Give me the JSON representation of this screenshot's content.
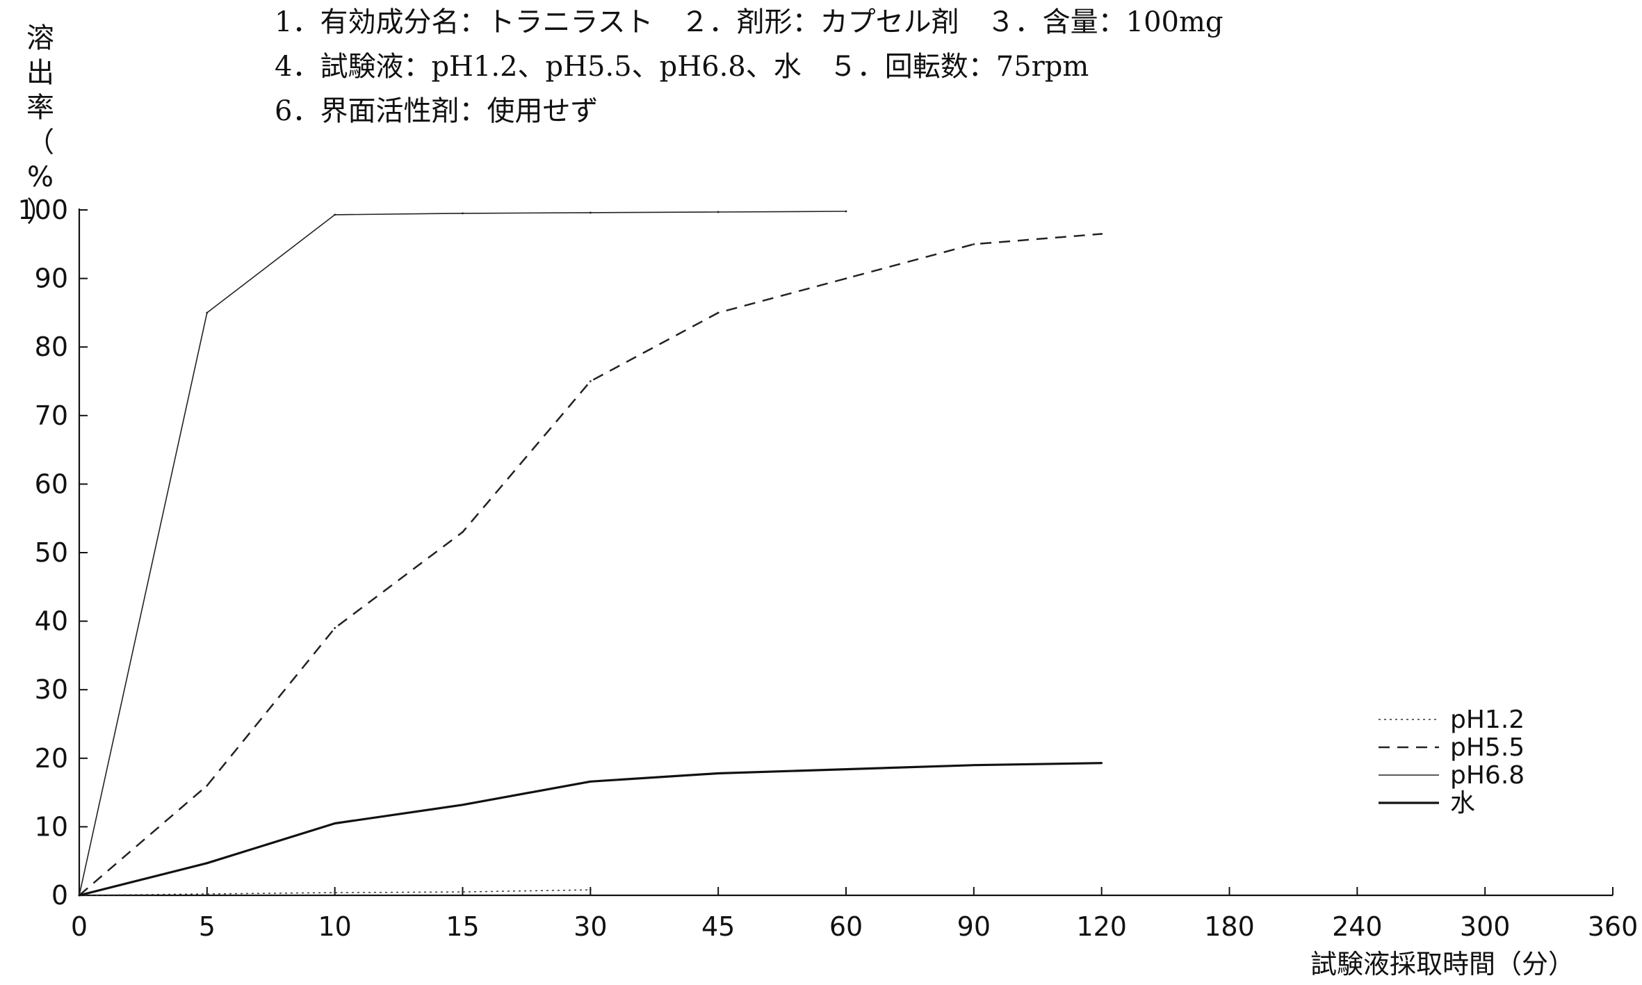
{
  "header": {
    "line1": "1．有効成分名：トラニラスト　２．剤形：カプセル剤　３．含量：100mg",
    "line2": "4．試験液：pH1.2、pH5.5、pH6.8、水　５．回転数：75rpm",
    "line3": "6．界面活性剤：使用せず"
  },
  "chart_data": {
    "type": "line",
    "title": "",
    "ylabel": "溶出率（%）",
    "xlabel": "試験液採取時間（分）",
    "categories": [
      "0",
      "5",
      "10",
      "15",
      "30",
      "45",
      "60",
      "90",
      "120",
      "180",
      "240",
      "300",
      "360"
    ],
    "ylim": [
      0,
      100
    ],
    "yticks": [
      0,
      10,
      20,
      30,
      40,
      50,
      60,
      70,
      80,
      90,
      100
    ],
    "legend_position": "bottom-right",
    "series": [
      {
        "name": "pH1.2",
        "style": "dotted",
        "stroke_width": 1.5,
        "color": "#333333",
        "x": [
          "0",
          "5",
          "10",
          "15",
          "30"
        ],
        "values": [
          0,
          0.2,
          0.4,
          0.5,
          0.8
        ]
      },
      {
        "name": "pH5.5",
        "style": "dashed",
        "stroke_width": 2.5,
        "color": "#222222",
        "x": [
          "0",
          "5",
          "10",
          "15",
          "30",
          "45",
          "60",
          "90",
          "120"
        ],
        "values": [
          0,
          16,
          39,
          53,
          75,
          85,
          90,
          95,
          96.5
        ]
      },
      {
        "name": "pH6.8",
        "style": "solid",
        "stroke_width": 1.6,
        "color": "#222222",
        "x": [
          "0",
          "5",
          "10",
          "15",
          "30",
          "45",
          "60"
        ],
        "values": [
          0,
          85,
          99.3,
          99.5,
          99.6,
          99.7,
          99.8
        ]
      },
      {
        "name": "水",
        "style": "solid",
        "stroke_width": 3.2,
        "color": "#111111",
        "x": [
          "0",
          "5",
          "10",
          "15",
          "30",
          "45",
          "60",
          "90",
          "120"
        ],
        "values": [
          0,
          4.7,
          10.5,
          13.2,
          16.6,
          17.8,
          18.4,
          19.0,
          19.3
        ]
      }
    ]
  }
}
